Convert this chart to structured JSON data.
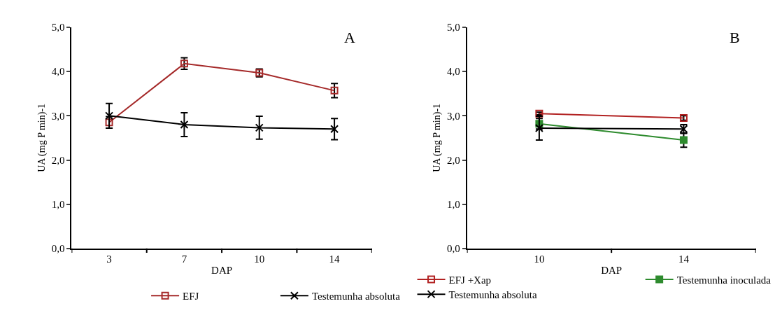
{
  "chart_data": [
    {
      "type": "line",
      "categories": [
        "3",
        "7",
        "10",
        "14"
      ],
      "xlabel": "DAP",
      "ylabel": "UA (mg P min)-1",
      "annotations": [
        "A"
      ],
      "ylim": [
        0,
        5
      ],
      "yticks": [
        {
          "value": 0,
          "label": "0,0"
        },
        {
          "value": 1,
          "label": "1,0"
        },
        {
          "value": 2,
          "label": "2,0"
        },
        {
          "value": 3,
          "label": "3,0"
        },
        {
          "value": 4,
          "label": "4,0"
        },
        {
          "value": 5,
          "label": "5,0"
        }
      ],
      "legend": "bottom",
      "series": [
        {
          "name": "EFJ",
          "color": "#a52a2a",
          "marker": "square",
          "values": [
            2.85,
            4.18,
            3.97,
            3.57
          ],
          "errors": [
            0.13,
            0.13,
            0.09,
            0.16
          ]
        },
        {
          "name": "Testemunha absoluta",
          "color": "#000000",
          "marker": "cross",
          "values": [
            3.0,
            2.8,
            2.73,
            2.7
          ],
          "errors": [
            0.28,
            0.27,
            0.26,
            0.24
          ]
        }
      ]
    },
    {
      "type": "line",
      "categories": [
        "10",
        "14"
      ],
      "xlabel": "DAP",
      "ylabel": "UA (mg P min)-1",
      "annotations": [
        "B"
      ],
      "ylim": [
        0,
        5
      ],
      "yticks": [
        {
          "value": 0,
          "label": "0,0"
        },
        {
          "value": 1,
          "label": "1,0"
        },
        {
          "value": 2,
          "label": "2,0"
        },
        {
          "value": 3,
          "label": "3,0"
        },
        {
          "value": 4,
          "label": "4,0"
        },
        {
          "value": 5,
          "label": "5,0"
        }
      ],
      "legend": "bottom",
      "series": [
        {
          "name": "EFJ +Xap",
          "color": "#b22222",
          "marker": "square",
          "values": [
            3.05,
            2.95
          ],
          "errors": [
            0.03,
            0.05
          ]
        },
        {
          "name": "Testemunha inoculada",
          "color": "#2e8b2e",
          "marker": "square",
          "values": [
            2.82,
            2.45
          ],
          "errors": [
            0.12,
            0.16
          ]
        },
        {
          "name": "Testemunha absoluta",
          "color": "#000000",
          "marker": "cross",
          "values": [
            2.72,
            2.7
          ],
          "errors": [
            0.27,
            0.1
          ]
        }
      ]
    }
  ]
}
